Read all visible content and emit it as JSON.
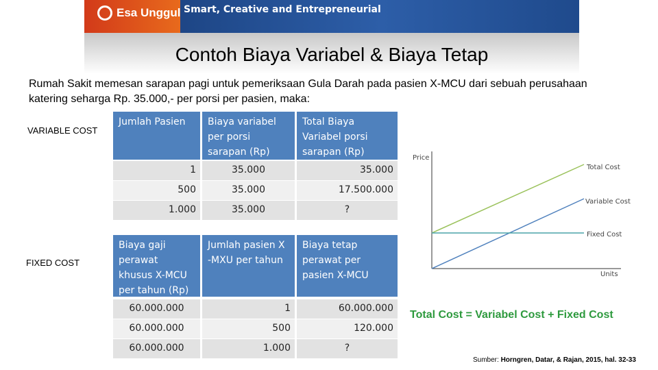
{
  "header": {
    "brand": "Esa Unggul",
    "tagline": "Smart, Creative and Entrepreneurial"
  },
  "title": "Contoh Biaya Variabel & Biaya Tetap",
  "intro": "Rumah Sakit memesan sarapan pagi untuk pemeriksaan Gula Darah pada pasien X-MCU dari sebuah perusahaan katering seharga Rp. 35.000,- per porsi per pasien, maka:",
  "variable_cost": {
    "label": "VARIABLE COST",
    "table": {
      "columns": [
        "Jumlah Pasien",
        "Biaya variabel per porsi sarapan (Rp)",
        "Total Biaya Variabel porsi sarapan  (Rp)"
      ],
      "rows": [
        [
          "1",
          "35.000",
          "35.000"
        ],
        [
          "500",
          "35.000",
          "17.500.000"
        ],
        [
          "1.000",
          "35.000",
          "?"
        ]
      ]
    }
  },
  "fixed_cost": {
    "label": "FIXED COST",
    "table": {
      "columns": [
        "Biaya gaji perawat khusus X-MCU per tahun (Rp)",
        "Jumlah pasien X -MXU per tahun",
        "Biaya tetap perawat per pasien X-MCU"
      ],
      "rows": [
        [
          "60.000.000",
          "1",
          "60.000.000"
        ],
        [
          "60.000.000",
          "500",
          "120.000"
        ],
        [
          "60.000.000",
          "1.000",
          "?"
        ]
      ]
    }
  },
  "diagram": {
    "y_axis": "Price",
    "x_axis": "Units",
    "lines": [
      "Total Cost",
      "Variable Cost",
      "Fixed Cost"
    ]
  },
  "formula": "Total Cost = Variabel Cost + Fixed Cost",
  "source": {
    "prefix": "Sumber:",
    "text": "Horngren, Datar, & Rajan, 2015, hal. 32-33"
  }
}
